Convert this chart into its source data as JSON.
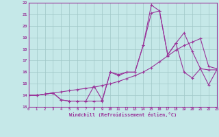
{
  "xlabel": "Windchill (Refroidissement éolien,°C)",
  "background_color": "#c5e8e8",
  "grid_color": "#a0c8c8",
  "line_color": "#993399",
  "xlim": [
    0,
    23
  ],
  "ylim": [
    13,
    22
  ],
  "yticks": [
    13,
    14,
    15,
    16,
    17,
    18,
    19,
    20,
    21,
    22
  ],
  "xticks": [
    0,
    1,
    2,
    3,
    4,
    5,
    6,
    7,
    8,
    9,
    10,
    11,
    12,
    13,
    14,
    15,
    16,
    17,
    18,
    19,
    20,
    21,
    22,
    23
  ],
  "series1_x": [
    0,
    1,
    2,
    3,
    4,
    5,
    6,
    7,
    8,
    9,
    10,
    11,
    12,
    13,
    14,
    15,
    16,
    17,
    18,
    19,
    20,
    21,
    22,
    23
  ],
  "series1_y": [
    14.0,
    14.0,
    14.1,
    14.2,
    14.3,
    14.4,
    14.5,
    14.6,
    14.7,
    14.85,
    15.0,
    15.2,
    15.45,
    15.7,
    16.0,
    16.4,
    16.9,
    17.4,
    17.9,
    18.3,
    18.6,
    18.9,
    16.5,
    16.3
  ],
  "series2_x": [
    0,
    1,
    2,
    3,
    4,
    5,
    6,
    7,
    8,
    9,
    10,
    11,
    12,
    13,
    14,
    15,
    16,
    17,
    18,
    19,
    20,
    21,
    22,
    23
  ],
  "series2_y": [
    14.0,
    14.0,
    14.1,
    14.2,
    13.6,
    13.5,
    13.5,
    13.5,
    13.5,
    13.5,
    16.0,
    15.8,
    16.0,
    16.0,
    18.3,
    21.1,
    21.3,
    17.5,
    18.5,
    19.4,
    17.8,
    16.3,
    16.2,
    16.2
  ],
  "series3_x": [
    0,
    1,
    2,
    3,
    4,
    5,
    6,
    7,
    8,
    9,
    10,
    11,
    12,
    13,
    14,
    15,
    16,
    17,
    18,
    19,
    20,
    21,
    22,
    23
  ],
  "series3_y": [
    14.0,
    14.0,
    14.1,
    14.2,
    13.6,
    13.5,
    13.5,
    13.5,
    14.8,
    13.6,
    16.0,
    15.7,
    16.0,
    16.0,
    18.3,
    21.8,
    21.3,
    17.5,
    18.5,
    16.0,
    15.5,
    16.3,
    14.9,
    16.2
  ]
}
